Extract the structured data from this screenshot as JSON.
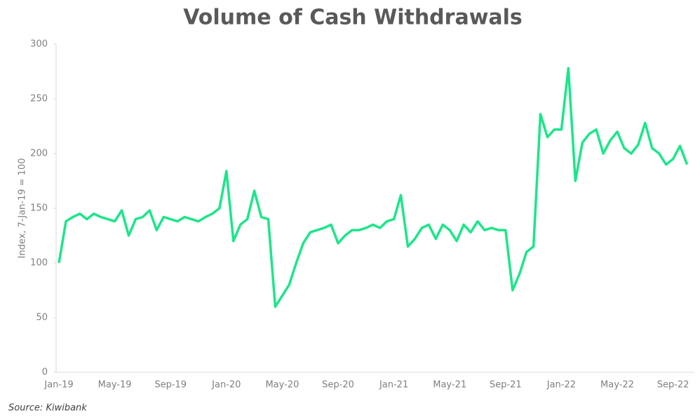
{
  "chart_data": {
    "type": "line",
    "title": "Volume of Cash Withdrawals",
    "y_label": "Index, 7-Jan-19 = 100",
    "source": "Source: Kiwibank",
    "color": "#1de58a",
    "categories": [
      "Jan-19",
      null,
      null,
      null,
      null,
      null,
      null,
      null,
      "May-19",
      null,
      null,
      null,
      null,
      null,
      null,
      null,
      "Sep-19",
      null,
      null,
      null,
      null,
      null,
      null,
      null,
      "Jan-20",
      null,
      null,
      null,
      null,
      null,
      null,
      null,
      "May-20",
      null,
      null,
      null,
      null,
      null,
      null,
      null,
      "Sep-20",
      null,
      null,
      null,
      null,
      null,
      null,
      null,
      "Jan-21",
      null,
      null,
      null,
      null,
      null,
      null,
      null,
      "May-21",
      null,
      null,
      null,
      null,
      null,
      null,
      null,
      "Sep-21",
      null,
      null,
      null,
      null,
      null,
      null,
      null,
      "Jan-22",
      null,
      null,
      null,
      null,
      null,
      null,
      null,
      "May-22",
      null,
      null,
      null,
      null,
      null,
      null,
      null,
      "Sep-22",
      null,
      null
    ],
    "values": [
      100,
      138,
      142,
      145,
      140,
      145,
      142,
      140,
      138,
      148,
      125,
      140,
      142,
      148,
      130,
      142,
      140,
      138,
      142,
      140,
      138,
      142,
      145,
      150,
      184,
      120,
      135,
      140,
      166,
      142,
      140,
      60,
      70,
      80,
      100,
      118,
      128,
      130,
      132,
      135,
      118,
      125,
      130,
      130,
      132,
      135,
      132,
      138,
      140,
      162,
      115,
      122,
      132,
      135,
      122,
      135,
      130,
      120,
      135,
      128,
      138,
      130,
      132,
      130,
      130,
      75,
      90,
      110,
      115,
      236,
      215,
      222,
      222,
      278,
      175,
      210,
      218,
      222,
      200,
      212,
      220,
      205,
      200,
      208,
      228,
      205,
      200,
      190,
      195,
      207,
      190
    ],
    "ylim": [
      0,
      300
    ],
    "yticks": [
      0,
      50,
      100,
      150,
      200,
      250,
      300
    ]
  }
}
